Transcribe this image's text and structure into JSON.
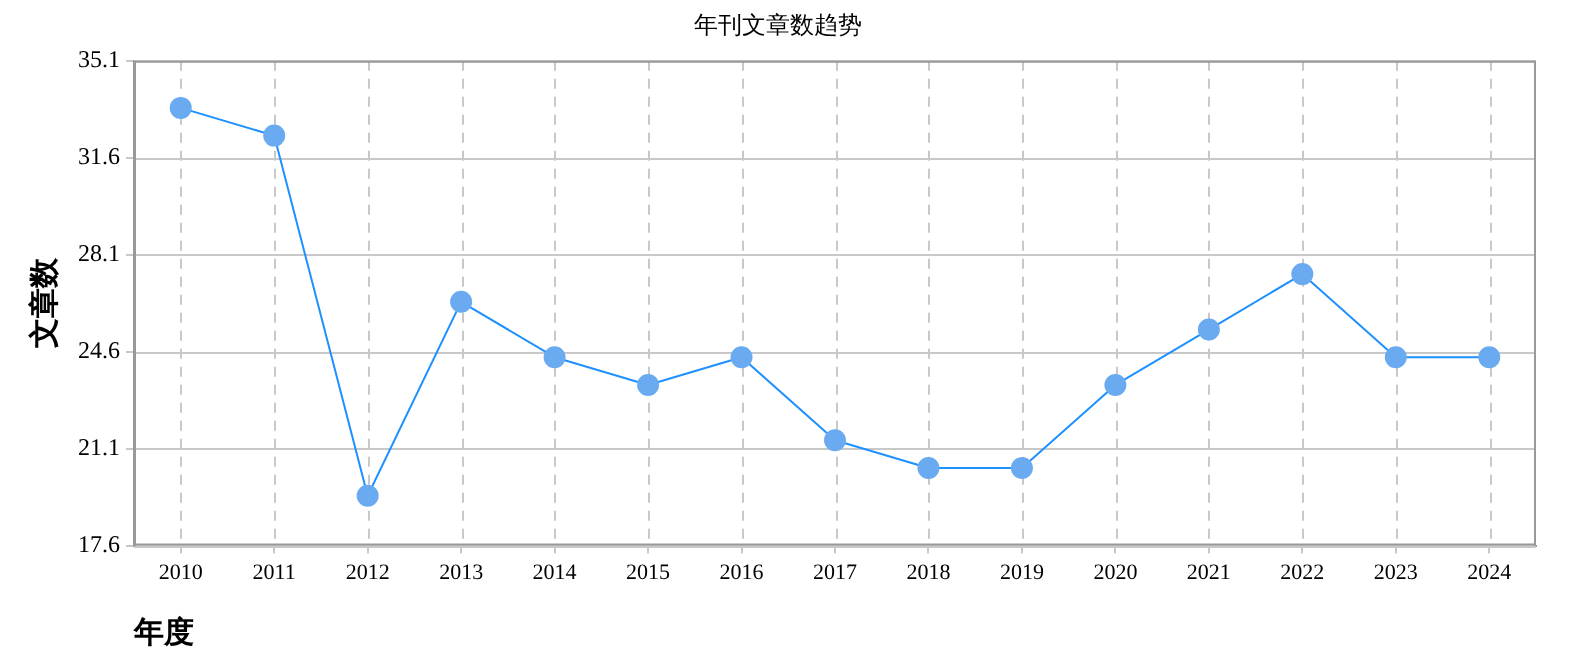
{
  "chart_data": {
    "type": "line",
    "title": "年刊文章数趋势",
    "xlabel": "年度",
    "ylabel": "文章数",
    "categories": [
      "2010",
      "2011",
      "2012",
      "2013",
      "2014",
      "2015",
      "2016",
      "2017",
      "2018",
      "2019",
      "2020",
      "2021",
      "2022",
      "2023",
      "2024"
    ],
    "series": [
      {
        "color": "#1e90ff",
        "values": [
          33.4,
          32.4,
          19.4,
          26.4,
          24.4,
          23.4,
          24.4,
          21.4,
          20.4,
          20.4,
          23.4,
          25.4,
          27.4,
          24.4,
          24.4
        ]
      }
    ],
    "ylim": [
      17.6,
      35.1
    ],
    "yticks": [
      17.6,
      21.1,
      24.6,
      28.1,
      31.6,
      35.1
    ],
    "grid": true,
    "legend": false,
    "marker": "circle",
    "line_style": "solid"
  }
}
